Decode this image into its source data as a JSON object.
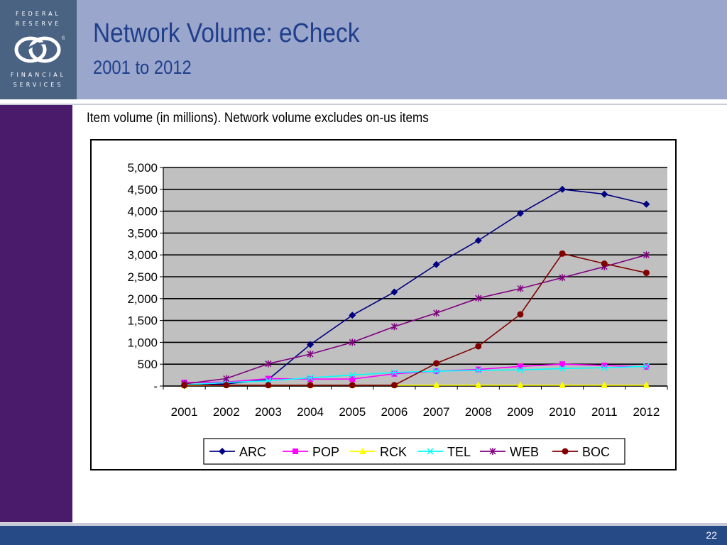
{
  "logo": {
    "lines_top": [
      "FEDERAL",
      "RESERVE"
    ],
    "lines_bottom": [
      "FINANCIAL",
      "SERVICES"
    ],
    "registered": "®"
  },
  "header": {
    "title": "Network Volume: eCheck",
    "subtitle": "2001 to 2012"
  },
  "caption": "Item volume (in millions).  Network volume excludes on-us items",
  "page_number": "22",
  "colors": {
    "header_band": "#9aa6cb",
    "logo_panel": "#4a6383",
    "sidebar": "#4a1b6b",
    "title_text": "#1f3f8c",
    "footer_bar": "#254a86",
    "plot_background": "#c0c0c0"
  },
  "chart_data": {
    "type": "line",
    "title": "",
    "xlabel": "",
    "ylabel": "",
    "categories": [
      "2001",
      "2002",
      "2003",
      "2004",
      "2005",
      "2006",
      "2007",
      "2008",
      "2009",
      "2010",
      "2011",
      "2012"
    ],
    "ylim": [
      0,
      5000
    ],
    "yticks": [
      0,
      500,
      1000,
      1500,
      2000,
      2500,
      3000,
      3500,
      4000,
      4500,
      5000
    ],
    "ytick_labels": [
      "-",
      "500",
      "1,000",
      "1,500",
      "2,000",
      "2,500",
      "3,000",
      "3,500",
      "4,000",
      "4,500",
      "5,000"
    ],
    "grid": "horizontal",
    "legend_position": "bottom",
    "series": [
      {
        "name": "ARC",
        "color": "#000080",
        "marker": "diamond",
        "values": [
          10,
          50,
          150,
          950,
          1620,
          2150,
          2780,
          3330,
          3950,
          4500,
          4390,
          4160
        ]
      },
      {
        "name": "POP",
        "color": "#ff00ff",
        "marker": "square",
        "values": [
          80,
          90,
          170,
          160,
          160,
          280,
          340,
          380,
          450,
          500,
          470,
          440
        ]
      },
      {
        "name": "RCK",
        "color": "#ffff00",
        "marker": "triangle",
        "values": [
          10,
          20,
          20,
          20,
          20,
          20,
          20,
          20,
          20,
          20,
          20,
          20
        ]
      },
      {
        "name": "TEL",
        "color": "#00ffff",
        "marker": "x",
        "values": [
          30,
          80,
          120,
          190,
          250,
          310,
          340,
          360,
          370,
          400,
          420,
          450
        ]
      },
      {
        "name": "WEB",
        "color": "#800080",
        "marker": "star",
        "values": [
          50,
          170,
          510,
          730,
          1000,
          1360,
          1670,
          2010,
          2230,
          2480,
          2730,
          3000
        ]
      },
      {
        "name": "BOC",
        "color": "#800000",
        "marker": "circle",
        "values": [
          20,
          20,
          20,
          20,
          20,
          20,
          520,
          910,
          1640,
          3030,
          2800,
          2590
        ]
      }
    ]
  }
}
